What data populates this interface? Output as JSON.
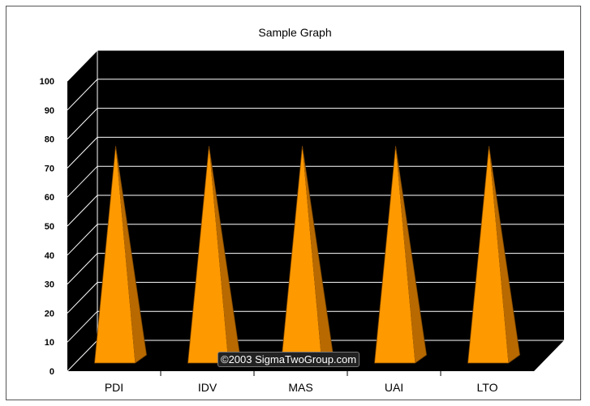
{
  "chart_data": {
    "type": "bar",
    "title": "Sample Graph",
    "categories": [
      "PDI",
      "IDV",
      "MAS",
      "UAI",
      "LTO"
    ],
    "series": [
      {
        "values": [
          72,
          72,
          72,
          72,
          72
        ]
      }
    ],
    "xlabel": "",
    "ylabel": "",
    "ylim": [
      0,
      100
    ],
    "yticks": [
      "0",
      "10",
      "20",
      "30",
      "40",
      "50",
      "60",
      "70",
      "80",
      "90",
      "100"
    ],
    "grid": true,
    "legend": "none",
    "style": "3d-pyramid",
    "colors": {
      "bar": "#ff9900",
      "bar_dark": "#b86a00",
      "plot_bg": "#000000",
      "grid": "#ffffff"
    }
  },
  "watermark": "©2003 SigmaTwoGroup.com"
}
